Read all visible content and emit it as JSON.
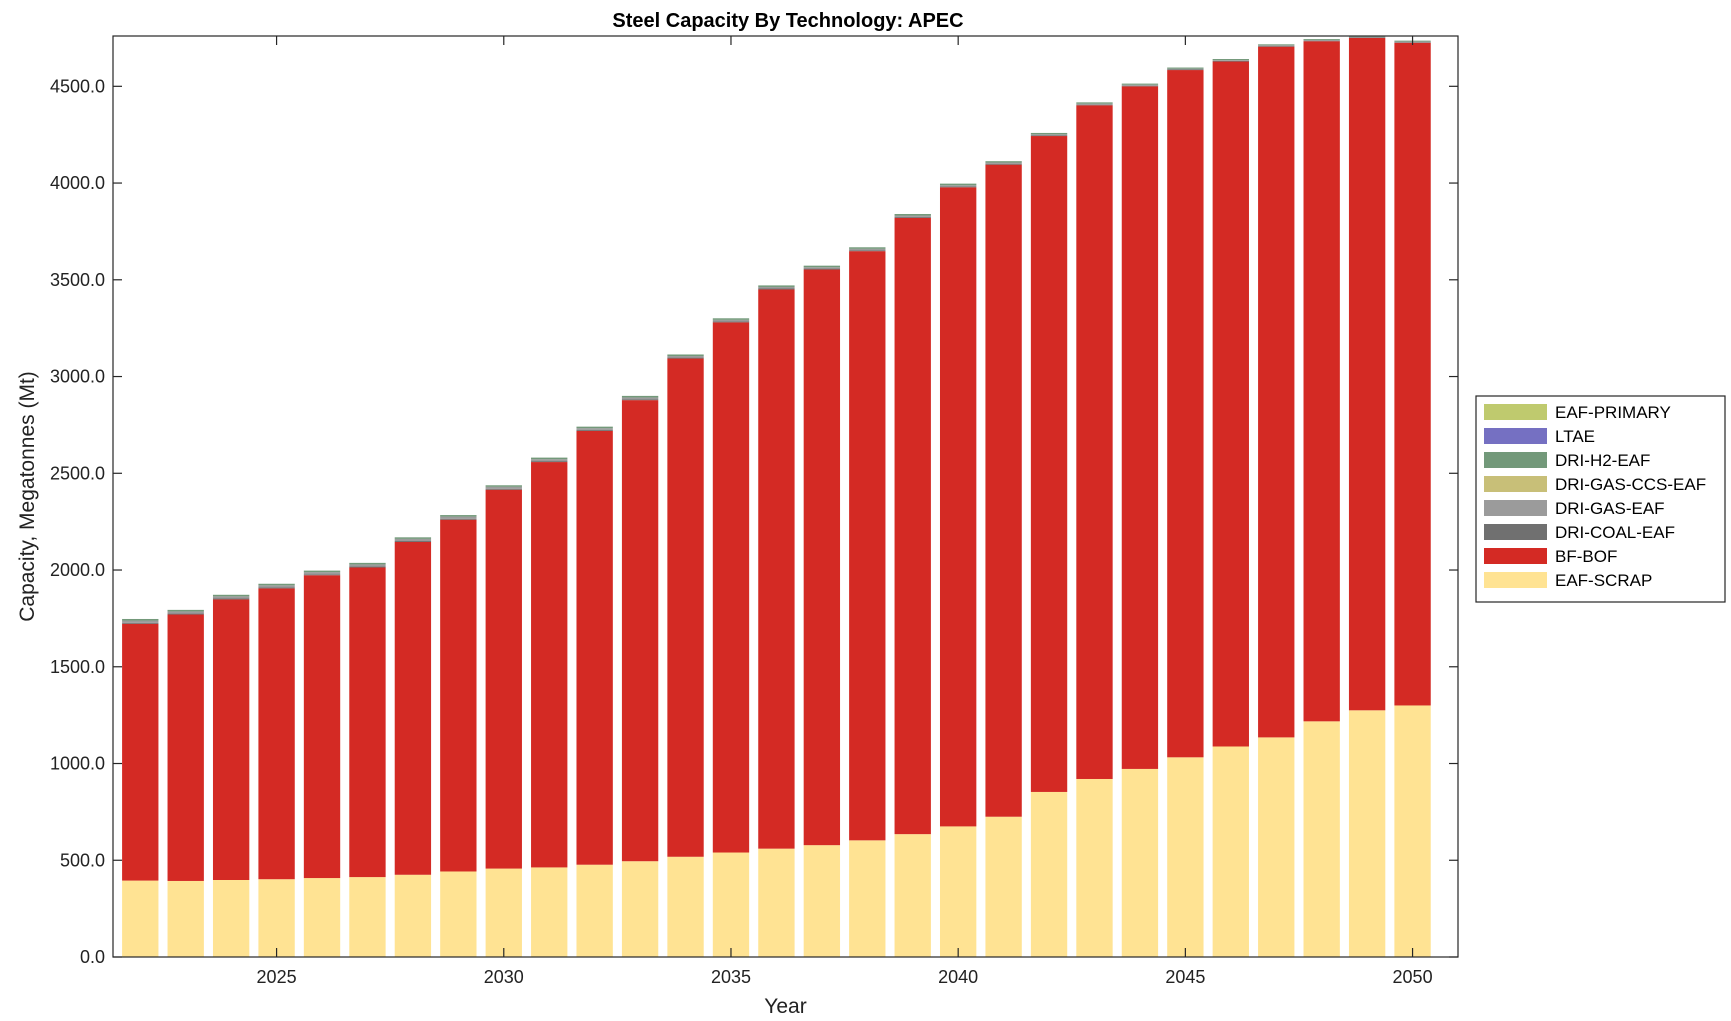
{
  "chart_data": {
    "type": "bar",
    "stacked": true,
    "title": "Steel Capacity By Technology: APEC",
    "xlabel": "Year",
    "ylabel": "Capacity, Megatonnes (Mt)",
    "ylim": [
      0,
      4760
    ],
    "xlim": [
      2021.4,
      2051.0
    ],
    "x": [
      2022,
      2023,
      2024,
      2025,
      2026,
      2027,
      2028,
      2029,
      2030,
      2031,
      2032,
      2033,
      2034,
      2035,
      2036,
      2037,
      2038,
      2039,
      2040,
      2041,
      2042,
      2043,
      2044,
      2045,
      2046,
      2047,
      2048,
      2049,
      2050
    ],
    "x_ticks": [
      2025,
      2030,
      2035,
      2040,
      2045,
      2050
    ],
    "x_tick_labels": [
      "2025",
      "2030",
      "2035",
      "2040",
      "2045",
      "2050"
    ],
    "y_ticks": [
      0,
      500,
      1000,
      1500,
      2000,
      2500,
      3000,
      3500,
      4000,
      4500
    ],
    "y_tick_labels": [
      "0.0",
      "500.0",
      "1000.0",
      "1500.0",
      "2000.0",
      "2500.0",
      "3000.0",
      "3500.0",
      "4000.0",
      "4500.0"
    ],
    "grid": false,
    "legend_position": "outside-right",
    "legend_order": [
      "EAF-PRIMARY",
      "LTAE",
      "DRI-H2-EAF",
      "DRI-GAS-CCS-EAF",
      "DRI-GAS-EAF",
      "DRI-COAL-EAF",
      "BF-BOF",
      "EAF-SCRAP"
    ],
    "series": [
      {
        "name": "EAF-SCRAP",
        "color": "#FFE393",
        "values": [
          395,
          393,
          398,
          402,
          408,
          413,
          425,
          442,
          457,
          463,
          477,
          495,
          518,
          540,
          560,
          578,
          603,
          635,
          675,
          725,
          853,
          920,
          972,
          1032,
          1088,
          1135,
          1218,
          1275,
          1300
        ]
      },
      {
        "name": "BF-BOF",
        "color": "#D42A24",
        "values": [
          1327,
          1377,
          1450,
          1503,
          1565,
          1600,
          1720,
          1818,
          1958,
          2095,
          2242,
          2383,
          2575,
          2740,
          2890,
          2975,
          3045,
          3185,
          3303,
          3370,
          3390,
          3482,
          3528,
          3552,
          3540,
          3570,
          3515,
          3475,
          3425
        ]
      },
      {
        "name": "DRI-COAL-EAF",
        "color": "#707070",
        "values": [
          5,
          5,
          5,
          5,
          5,
          5,
          5,
          5,
          5,
          5,
          5,
          5,
          5,
          5,
          5,
          5,
          5,
          5,
          5,
          5,
          3,
          3,
          3,
          3,
          3,
          3,
          3,
          3,
          3
        ]
      },
      {
        "name": "DRI-GAS-EAF",
        "color": "#9B9B9B",
        "values": [
          12,
          11,
          11,
          11,
          11,
          11,
          11,
          11,
          10,
          10,
          9,
          9,
          8,
          8,
          8,
          7,
          7,
          7,
          6,
          6,
          6,
          5,
          5,
          4,
          4,
          4,
          3,
          3,
          3
        ]
      },
      {
        "name": "DRI-GAS-CCS-EAF",
        "color": "#C8BF78",
        "values": [
          0,
          0,
          0,
          0,
          0,
          0,
          0,
          0,
          0,
          0,
          0,
          0,
          0,
          0,
          0,
          0,
          0,
          0,
          0,
          0,
          0,
          0,
          0,
          0,
          0,
          0,
          0,
          0,
          0
        ]
      },
      {
        "name": "DRI-H2-EAF",
        "color": "#73997A",
        "values": [
          8,
          8,
          8,
          8,
          8,
          8,
          8,
          8,
          8,
          8,
          8,
          8,
          8,
          8,
          8,
          8,
          8,
          8,
          8,
          7,
          7,
          7,
          6,
          6,
          6,
          5,
          5,
          5,
          5
        ]
      },
      {
        "name": "LTAE",
        "color": "#7570C2",
        "values": [
          0,
          0,
          0,
          0,
          0,
          0,
          0,
          0,
          0,
          0,
          0,
          0,
          0,
          0,
          0,
          0,
          0,
          0,
          0,
          0,
          0,
          0,
          0,
          0,
          0,
          0,
          0,
          0,
          0
        ]
      },
      {
        "name": "EAF-PRIMARY",
        "color": "#BFCA6E",
        "values": [
          0,
          0,
          0,
          0,
          0,
          0,
          0,
          0,
          0,
          0,
          0,
          0,
          0,
          0,
          0,
          0,
          0,
          0,
          0,
          0,
          0,
          0,
          0,
          0,
          0,
          0,
          0,
          0,
          0
        ]
      }
    ]
  }
}
